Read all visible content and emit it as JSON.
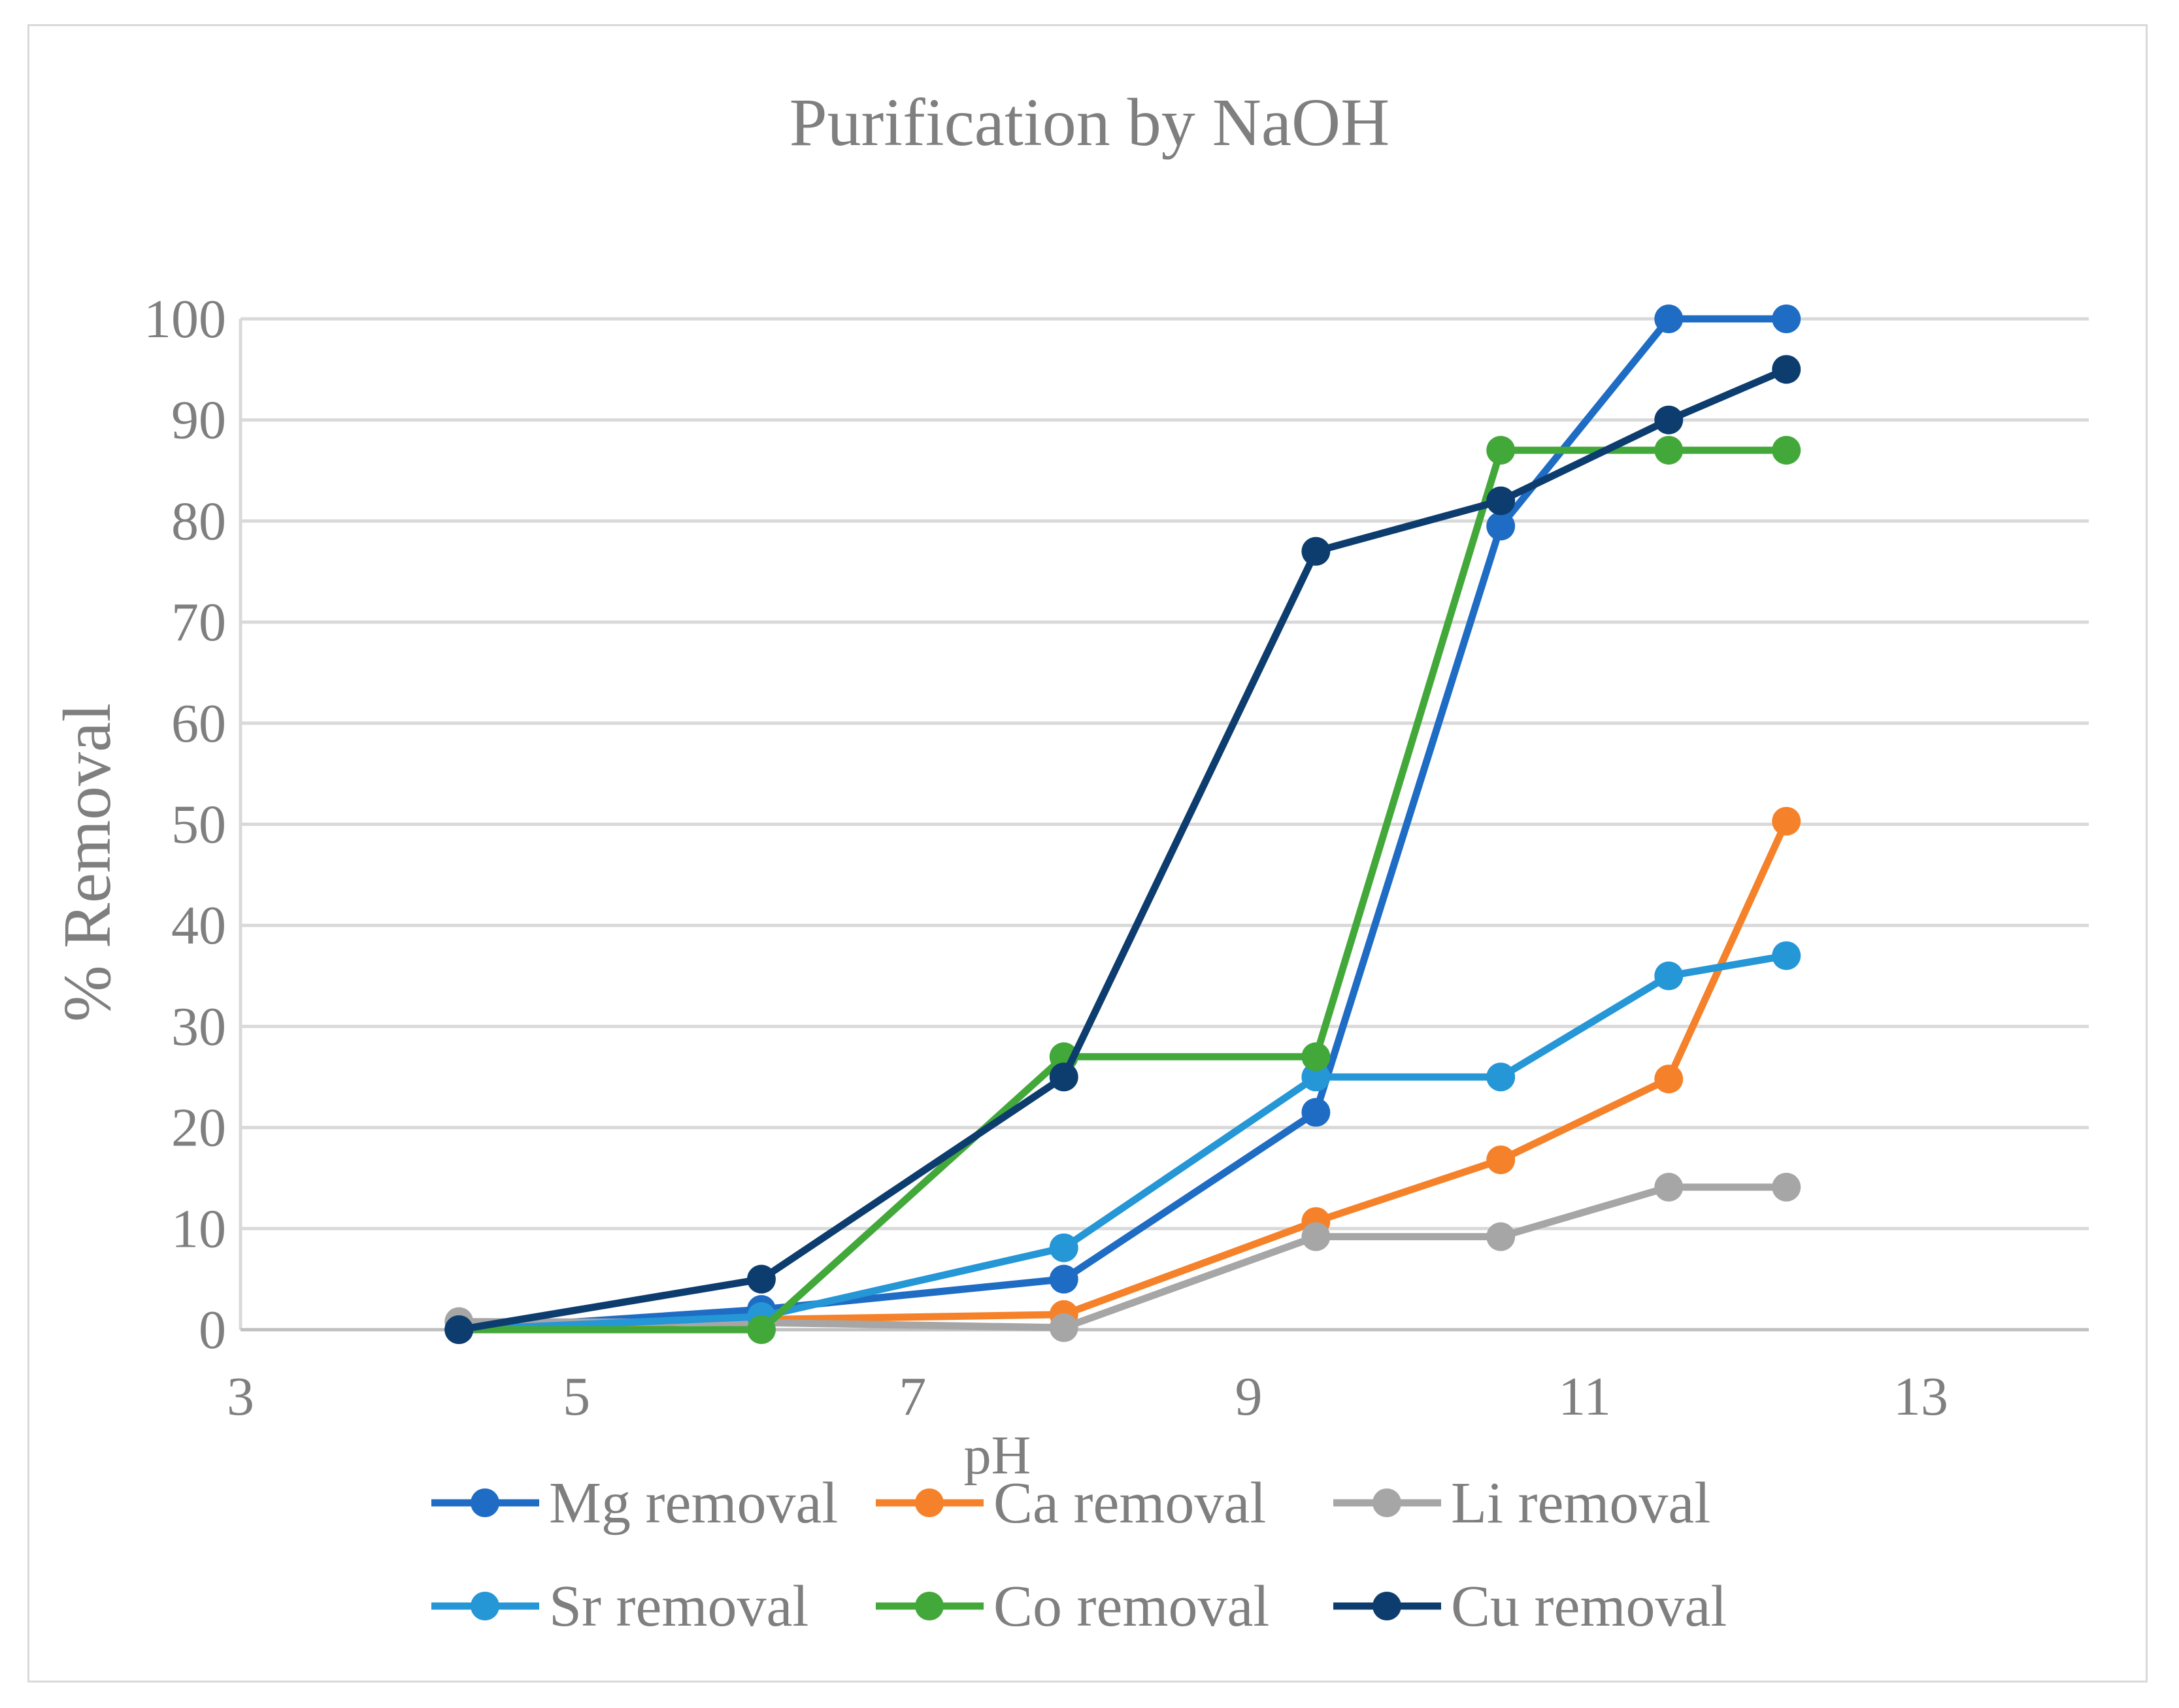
{
  "chart_data": {
    "type": "scatter",
    "title": "Purification by NaOH",
    "xlabel": "pH",
    "ylabel": "% Removal",
    "xlim": [
      3,
      14
    ],
    "ylim": [
      0,
      100
    ],
    "x_ticks": [
      3,
      5,
      7,
      9,
      11,
      13
    ],
    "y_ticks": [
      0,
      10,
      20,
      30,
      40,
      50,
      60,
      70,
      80,
      90,
      100
    ],
    "grid": "horizontal",
    "legend_position": "bottom",
    "series": [
      {
        "name": "Mg removal",
        "color": "#1f6cc4",
        "x": [
          4.3,
          6.1,
          7.9,
          9.4,
          10.5,
          11.5,
          12.2
        ],
        "y": [
          0,
          2,
          5,
          21.5,
          79.5,
          100,
          100
        ]
      },
      {
        "name": "Ca removal",
        "color": "#f5822a",
        "x": [
          4.3,
          6.1,
          7.9,
          9.4,
          10.5,
          11.5,
          12.2
        ],
        "y": [
          0,
          1,
          1.5,
          10.7,
          16.8,
          24.8,
          50.3
        ]
      },
      {
        "name": "Li removal",
        "color": "#a6a6a6",
        "x": [
          4.3,
          6.1,
          7.9,
          9.4,
          10.5,
          11.5,
          12.2
        ],
        "y": [
          0.8,
          0.7,
          0.2,
          9.2,
          9.2,
          14.1,
          14.1
        ]
      },
      {
        "name": "Sr removal",
        "color": "#2596d6",
        "x": [
          4.3,
          6.1,
          7.9,
          9.4,
          10.5,
          11.5,
          12.2
        ],
        "y": [
          0,
          1.3,
          8.1,
          25,
          25,
          35,
          37
        ]
      },
      {
        "name": "Co removal",
        "color": "#43a83a",
        "x": [
          4.3,
          6.1,
          7.9,
          9.4,
          10.5,
          11.5,
          12.2
        ],
        "y": [
          0,
          0,
          27,
          27,
          87,
          87,
          87
        ]
      },
      {
        "name": "Cu removal",
        "color": "#0d3d6e",
        "x": [
          4.3,
          6.1,
          7.9,
          9.4,
          10.5,
          11.5,
          12.2
        ],
        "y": [
          0,
          5,
          25,
          77,
          82,
          90,
          95
        ]
      }
    ]
  }
}
